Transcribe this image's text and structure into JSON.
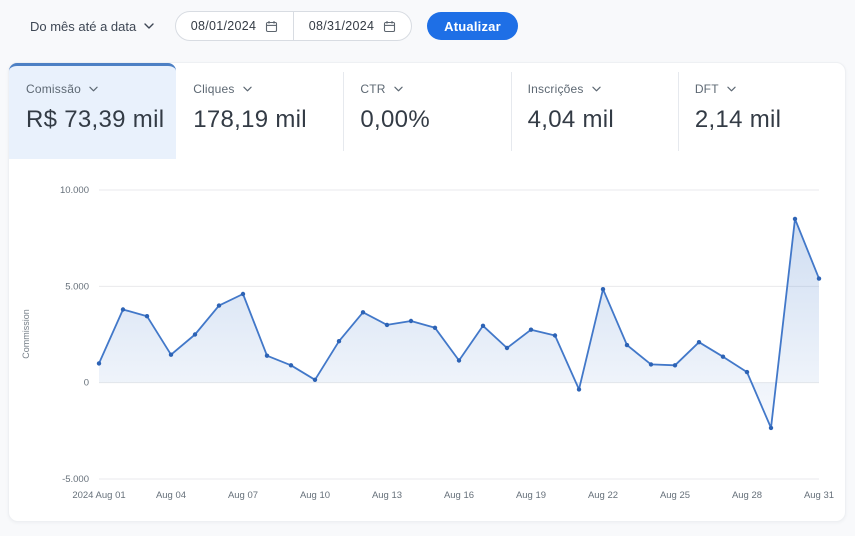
{
  "colors": {
    "accent": "#1e6fe6",
    "card_selected_border": "#4d80c4",
    "card_selected_bg": "#e9f1fc"
  },
  "toolbar": {
    "period_selector": {
      "label": "Do mês até a data"
    },
    "date_range": {
      "start": "08/01/2024",
      "end": "08/31/2024"
    },
    "update_button": "Atualizar"
  },
  "metrics": {
    "cards": [
      {
        "label": "Comissão",
        "value": "R$ 73,39 mil",
        "selected": true
      },
      {
        "label": "Cliques",
        "value": "178,19 mil",
        "selected": false
      },
      {
        "label": "CTR",
        "value": "0,00%",
        "selected": false
      },
      {
        "label": "Inscrições",
        "value": "4,04 mil",
        "selected": false
      },
      {
        "label": "DFT",
        "value": "2,14 mil",
        "selected": false
      }
    ]
  },
  "chart_data": {
    "type": "area",
    "title": "",
    "xlabel": "",
    "ylabel": "Commission",
    "ylim": [
      -5000,
      10000
    ],
    "grid": true,
    "x": [
      "Aug 01",
      "Aug 02",
      "Aug 03",
      "Aug 04",
      "Aug 05",
      "Aug 06",
      "Aug 07",
      "Aug 08",
      "Aug 09",
      "Aug 10",
      "Aug 11",
      "Aug 12",
      "Aug 13",
      "Aug 14",
      "Aug 15",
      "Aug 16",
      "Aug 17",
      "Aug 18",
      "Aug 19",
      "Aug 20",
      "Aug 21",
      "Aug 22",
      "Aug 23",
      "Aug 24",
      "Aug 25",
      "Aug 26",
      "Aug 27",
      "Aug 28",
      "Aug 29",
      "Aug 30",
      "Aug 31"
    ],
    "values": [
      1000,
      3800,
      3450,
      1450,
      2500,
      4000,
      4600,
      1400,
      900,
      150,
      2150,
      3650,
      3000,
      3200,
      2850,
      1150,
      2950,
      1800,
      2750,
      2450,
      -350,
      4850,
      1950,
      950,
      900,
      2100,
      1350,
      550,
      -2350,
      8500,
      5400
    ],
    "yticks": [
      {
        "value": 10000,
        "label": "10.000"
      },
      {
        "value": 5000,
        "label": "5.000"
      },
      {
        "value": 0,
        "label": "0"
      },
      {
        "value": -5000,
        "label": "-5.000"
      }
    ],
    "xticks": [
      {
        "index": 0,
        "label": "2024 Aug 01"
      },
      {
        "index": 3,
        "label": "Aug 04"
      },
      {
        "index": 6,
        "label": "Aug 07"
      },
      {
        "index": 9,
        "label": "Aug 10"
      },
      {
        "index": 12,
        "label": "Aug 13"
      },
      {
        "index": 15,
        "label": "Aug 16"
      },
      {
        "index": 18,
        "label": "Aug 19"
      },
      {
        "index": 21,
        "label": "Aug 22"
      },
      {
        "index": 24,
        "label": "Aug 25"
      },
      {
        "index": 27,
        "label": "Aug 28"
      },
      {
        "index": 30,
        "label": "Aug 31"
      }
    ],
    "colors": {
      "line": "#4278c9",
      "marker": "#2d63b5",
      "fill_top": "rgba(109,152,214,0.33)",
      "fill_bottom": "rgba(109,152,214,0.05)",
      "gridline": "#e9eaec",
      "tick_text": "#66707a"
    }
  }
}
